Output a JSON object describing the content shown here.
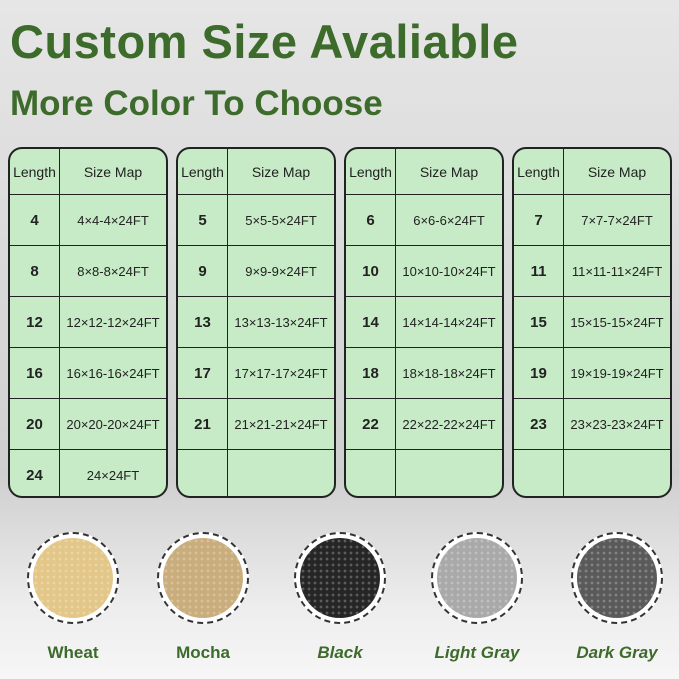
{
  "title": "Custom Size Avaliable",
  "subtitle": "More Color To Choose",
  "table_headers": {
    "length": "Length",
    "size_map": "Size Map"
  },
  "tables": [
    {
      "rows": [
        [
          "4",
          "4×4-4×24FT"
        ],
        [
          "8",
          "8×8-8×24FT"
        ],
        [
          "12",
          "12×12-12×24FT"
        ],
        [
          "16",
          "16×16-16×24FT"
        ],
        [
          "20",
          "20×20-20×24FT"
        ],
        [
          "24",
          "24×24FT"
        ]
      ]
    },
    {
      "rows": [
        [
          "5",
          "5×5-5×24FT"
        ],
        [
          "9",
          "9×9-9×24FT"
        ],
        [
          "13",
          "13×13-13×24FT"
        ],
        [
          "17",
          "17×17-17×24FT"
        ],
        [
          "21",
          "21×21-21×24FT"
        ],
        [
          "",
          ""
        ]
      ]
    },
    {
      "rows": [
        [
          "6",
          "6×6-6×24FT"
        ],
        [
          "10",
          "10×10-10×24FT"
        ],
        [
          "14",
          "14×14-14×24FT"
        ],
        [
          "18",
          "18×18-18×24FT"
        ],
        [
          "22",
          "22×22-22×24FT"
        ],
        [
          "",
          ""
        ]
      ]
    },
    {
      "rows": [
        [
          "7",
          "7×7-7×24FT"
        ],
        [
          "11",
          "11×11-11×24FT"
        ],
        [
          "15",
          "15×15-15×24FT"
        ],
        [
          "19",
          "19×19-19×24FT"
        ],
        [
          "23",
          "23×23-23×24FT"
        ],
        [
          "",
          ""
        ]
      ]
    }
  ],
  "colors": [
    {
      "label": "Wheat",
      "swatch": "#e3c788"
    },
    {
      "label": "Mocha",
      "swatch": "#c9ad7c"
    },
    {
      "label": "Black",
      "swatch": "#262626"
    },
    {
      "label": "Light Gray",
      "swatch": "#a9a9a9"
    },
    {
      "label": "Dark Gray",
      "swatch": "#5a5a5a"
    }
  ],
  "accent": "#3d6b2b"
}
